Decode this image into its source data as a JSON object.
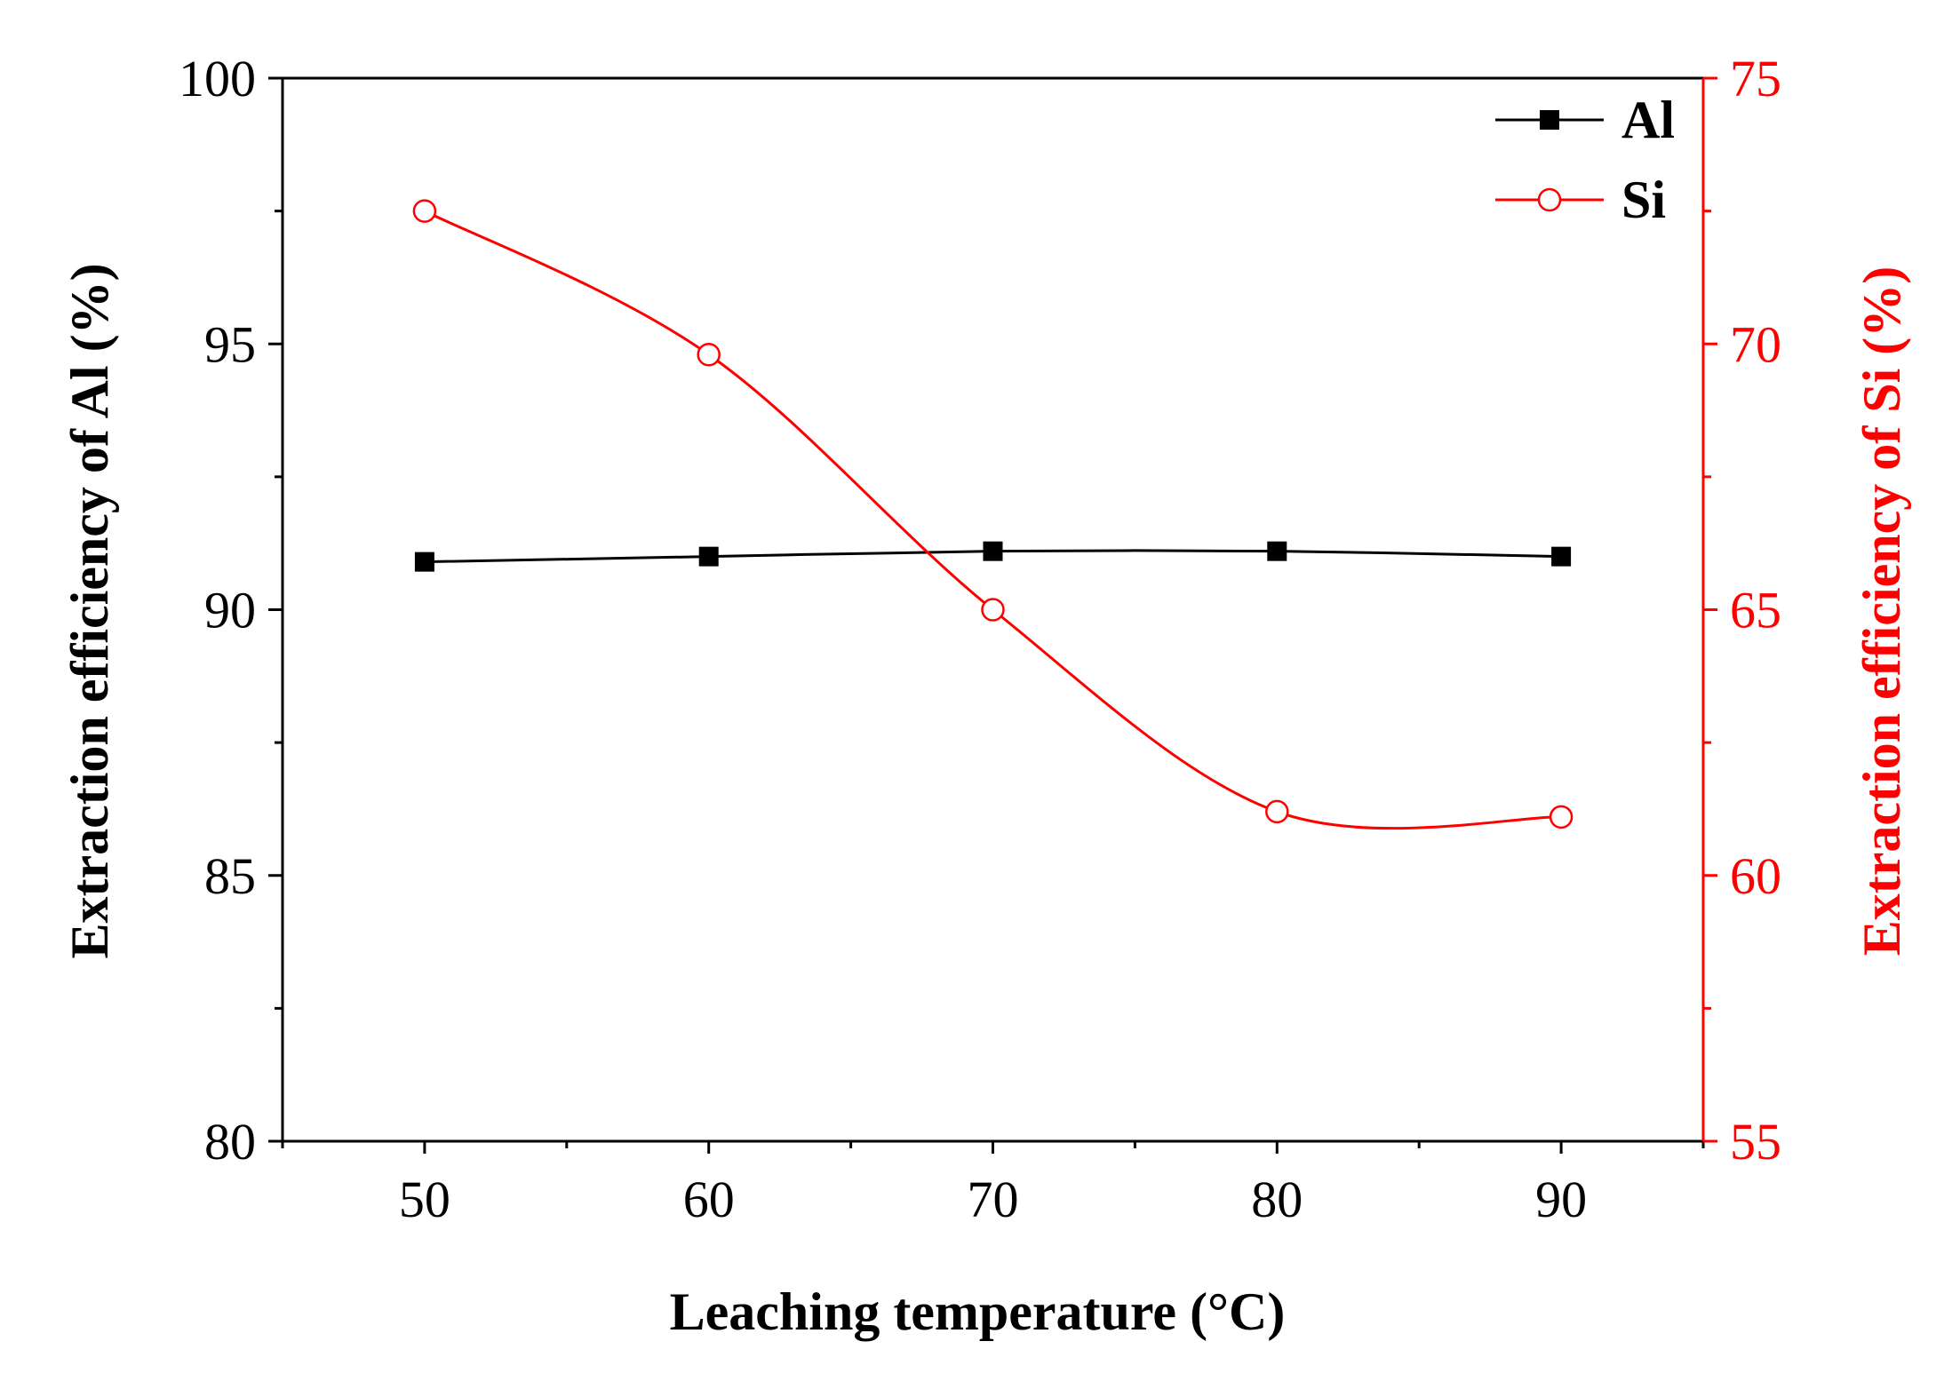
{
  "chart_data": {
    "type": "line",
    "title": "",
    "xlabel": "Leaching temperature (°C)",
    "ylabel_left": "Extraction efficiency of Al (%)",
    "ylabel_right": "Extraction efficiency of Si (%)",
    "x": [
      50,
      60,
      70,
      80,
      90
    ],
    "xlim": [
      45,
      95
    ],
    "xticks": [
      50,
      60,
      70,
      80,
      90
    ],
    "ylim_left": [
      80,
      100
    ],
    "yticks_left": [
      80,
      85,
      90,
      95,
      100
    ],
    "ylim_right": [
      55,
      75
    ],
    "yticks_right": [
      55,
      60,
      65,
      70,
      75
    ],
    "legend_position": "top-right",
    "grid": false,
    "series": [
      {
        "name": "Al",
        "axis": "left",
        "color": "#000000",
        "marker": "filled-square",
        "values": [
          90.9,
          91.0,
          91.1,
          91.1,
          91.0
        ]
      },
      {
        "name": "Si",
        "axis": "right",
        "color": "#ff0000",
        "marker": "open-circle",
        "values": [
          72.5,
          69.8,
          65.0,
          61.2,
          61.1
        ]
      }
    ]
  }
}
